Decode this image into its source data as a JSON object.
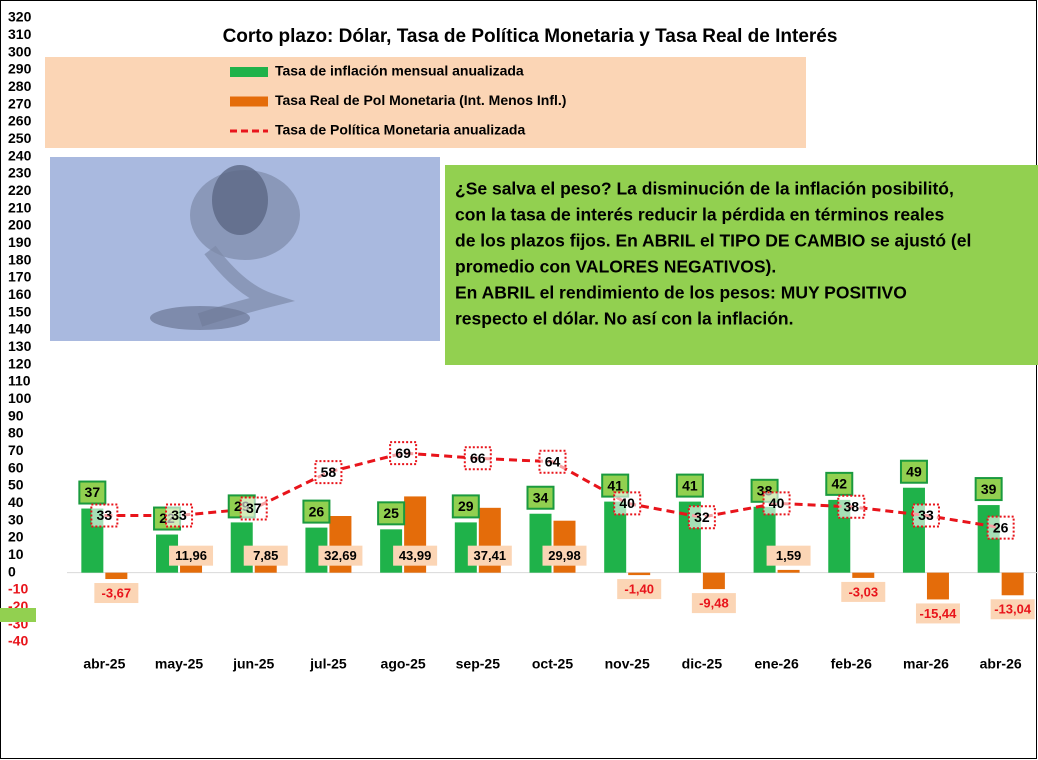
{
  "chart_data": {
    "type": "bar_line",
    "title": "Corto plazo: Dólar, Tasa de Política Monetaria y Tasa Real de Interés",
    "categories": [
      "abr-25",
      "may-25",
      "jun-25",
      "jul-25",
      "ago-25",
      "sep-25",
      "oct-25",
      "nov-25",
      "dic-25",
      "ene-26",
      "feb-26",
      "mar-26",
      "abr-26"
    ],
    "series": [
      {
        "name": "Tasa de inflación mensual anualizada",
        "type": "bar",
        "color": "#1fb24a",
        "values": [
          37,
          22,
          29,
          26,
          25,
          29,
          34,
          41,
          41,
          38,
          42,
          49,
          39
        ]
      },
      {
        "name": "Tasa Real de Pol Monetaria (Int. Menos Infl.)",
        "type": "bar",
        "color": "#e46c0a",
        "values": [
          -3.67,
          11.96,
          7.85,
          32.69,
          43.99,
          37.41,
          29.98,
          -1.4,
          -9.48,
          1.59,
          -3.03,
          -15.44,
          -13.04
        ],
        "value_labels": [
          "-3,67",
          "11,96",
          "7,85",
          "32,69",
          "43,99",
          "37,41",
          "29,98",
          "-1,40",
          "-9,48",
          "1,59",
          "-3,03",
          "-15,44",
          "-13,04"
        ]
      },
      {
        "name": "Tasa de Política Monetaria anualizada",
        "type": "line",
        "color": "#e8141b",
        "values": [
          33,
          33,
          37,
          58,
          69,
          66,
          64,
          40,
          32,
          40,
          38,
          33,
          26
        ]
      }
    ],
    "ylim": [
      -40,
      320
    ],
    "yticks": [
      -40,
      -30,
      -20,
      -10,
      0,
      10,
      20,
      30,
      40,
      50,
      60,
      70,
      80,
      90,
      100,
      110,
      120,
      130,
      140,
      150,
      160,
      170,
      180,
      190,
      200,
      210,
      220,
      230,
      240,
      250,
      260,
      270,
      280,
      290,
      300,
      310,
      320
    ],
    "grid": false,
    "annotation": [
      "¿Se salva el peso? La disminución de la inflación posibilitó,",
      "con la tasa de interés reducir la pérdida en términos reales",
      "de los plazos fijos. En ABRIL el TIPO DE CAMBIO se ajustó (el",
      "promedio con VALORES NEGATIVOS).",
      "En ABRIL el rendimiento de los pesos: MUY POSITIVO",
      "respecto el dólar. No así con la inflación."
    ]
  }
}
